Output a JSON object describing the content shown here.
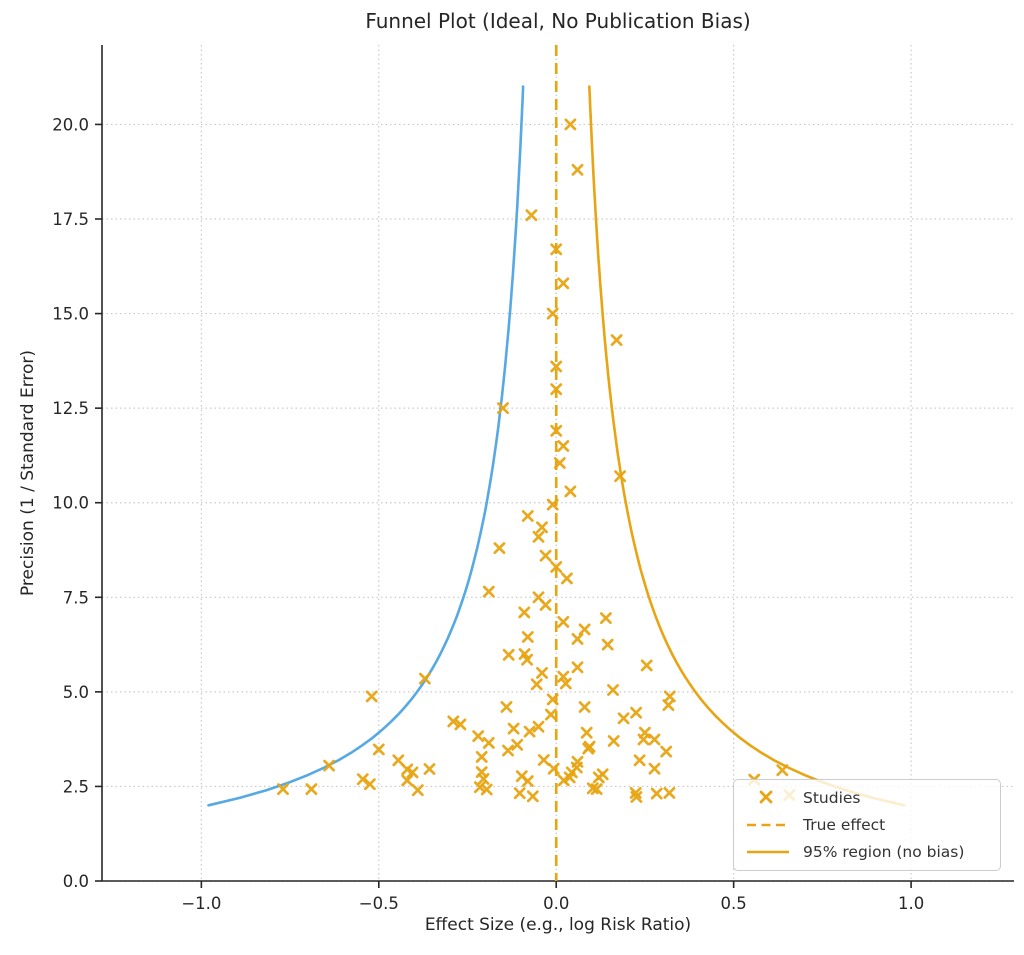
{
  "chart_data": {
    "type": "scatter",
    "title": "Funnel Plot (Ideal, No Publication Bias)",
    "xlabel": "Effect Size (e.g., log Risk Ratio)",
    "ylabel": "Precision (1 / Standard Error)",
    "xlim": [
      -1.28,
      1.29
    ],
    "ylim": [
      0,
      22.1
    ],
    "xticks": [
      -1.0,
      -0.5,
      0.0,
      0.5,
      1.0
    ],
    "yticks": [
      0.0,
      2.5,
      5.0,
      7.5,
      10.0,
      12.5,
      15.0,
      17.5,
      20.0
    ],
    "grid": "dotted",
    "legend_position": "lower right",
    "true_effect_x": 0.0,
    "funnel": {
      "z": 1.96,
      "precision_min": 2.0,
      "precision_max": 21.0
    },
    "colors": {
      "studies": "#E8A412",
      "true_effect": "#E8A412",
      "funnel_right": "#E8A412",
      "funnel_left": "#56A9E3",
      "grid": "#c9c9c9",
      "axis": "#262626",
      "text": "#262626",
      "legend_text": "#333333"
    },
    "legend": {
      "items": [
        {
          "label": "Studies",
          "type": "marker"
        },
        {
          "label": "True effect",
          "type": "dashed"
        },
        {
          "label": "95% region (no bias)",
          "type": "solid"
        }
      ]
    },
    "series": [
      {
        "name": "Studies",
        "points": [
          [
            0.04,
            20.0
          ],
          [
            0.06,
            18.8
          ],
          [
            -0.07,
            17.6
          ],
          [
            0.0,
            16.7
          ],
          [
            0.02,
            15.8
          ],
          [
            -0.01,
            15.0
          ],
          [
            0.17,
            14.3
          ],
          [
            0.0,
            13.6
          ],
          [
            0.0,
            13.0
          ],
          [
            -0.15,
            12.5
          ],
          [
            0.0,
            11.9
          ],
          [
            0.02,
            11.5
          ],
          [
            0.01,
            11.05
          ],
          [
            0.18,
            10.7
          ],
          [
            0.04,
            10.3
          ],
          [
            -0.01,
            9.95
          ],
          [
            -0.08,
            9.65
          ],
          [
            -0.04,
            9.35
          ],
          [
            -0.05,
            9.1
          ],
          [
            -0.16,
            8.8
          ],
          [
            -0.03,
            8.6
          ],
          [
            0.0,
            8.3
          ],
          [
            0.03,
            8.0
          ],
          [
            -0.19,
            7.65
          ],
          [
            -0.05,
            7.5
          ],
          [
            -0.03,
            7.3
          ],
          [
            -0.09,
            7.1
          ],
          [
            0.14,
            6.95
          ],
          [
            0.02,
            6.85
          ],
          [
            0.08,
            6.65
          ],
          [
            -0.08,
            6.45
          ],
          [
            0.06,
            6.4
          ],
          [
            0.145,
            6.25
          ],
          [
            -0.089,
            6.0
          ],
          [
            -0.134,
            5.98
          ],
          [
            -0.082,
            5.85
          ],
          [
            0.255,
            5.7
          ],
          [
            0.06,
            5.65
          ],
          [
            -0.04,
            5.5
          ],
          [
            0.02,
            5.4
          ],
          [
            -0.37,
            5.35
          ],
          [
            -0.055,
            5.2
          ],
          [
            0.027,
            5.22
          ],
          [
            0.16,
            5.05
          ],
          [
            0.32,
            4.88
          ],
          [
            -0.52,
            4.88
          ],
          [
            0.316,
            4.65
          ],
          [
            -0.01,
            4.8
          ],
          [
            0.08,
            4.6
          ],
          [
            -0.14,
            4.6
          ],
          [
            0.225,
            4.45
          ],
          [
            -0.015,
            4.4
          ],
          [
            0.19,
            4.3
          ],
          [
            -0.29,
            4.22
          ],
          [
            -0.27,
            4.14
          ],
          [
            -0.12,
            4.03
          ],
          [
            -0.05,
            4.08
          ],
          [
            -0.075,
            3.95
          ],
          [
            0.086,
            3.92
          ],
          [
            0.25,
            3.92
          ],
          [
            -0.22,
            3.83
          ],
          [
            0.246,
            3.74
          ],
          [
            0.277,
            3.74
          ],
          [
            0.162,
            3.7
          ],
          [
            -0.19,
            3.65
          ],
          [
            -0.11,
            3.6
          ],
          [
            0.094,
            3.55
          ],
          [
            0.09,
            3.5
          ],
          [
            -0.5,
            3.48
          ],
          [
            -0.136,
            3.45
          ],
          [
            0.31,
            3.42
          ],
          [
            -0.21,
            3.28
          ],
          [
            -0.035,
            3.2
          ],
          [
            -0.445,
            3.19
          ],
          [
            0.235,
            3.19
          ],
          [
            0.06,
            3.15
          ],
          [
            -0.64,
            3.05
          ],
          [
            0.058,
            3.0
          ],
          [
            -0.007,
            2.97
          ],
          [
            0.277,
            2.97
          ],
          [
            -0.42,
            2.95
          ],
          [
            -0.357,
            2.96
          ],
          [
            0.637,
            2.93
          ],
          [
            -0.405,
            2.87
          ],
          [
            0.044,
            2.87
          ],
          [
            -0.21,
            2.88
          ],
          [
            0.131,
            2.82
          ],
          [
            -0.097,
            2.77
          ],
          [
            0.12,
            2.74
          ],
          [
            0.038,
            2.74
          ],
          [
            -0.205,
            2.7
          ],
          [
            -0.545,
            2.69
          ],
          [
            0.558,
            2.68
          ],
          [
            -0.42,
            2.66
          ],
          [
            0.021,
            2.66
          ],
          [
            -0.08,
            2.64
          ],
          [
            -0.525,
            2.56
          ],
          [
            -0.215,
            2.48
          ],
          [
            0.103,
            2.45
          ],
          [
            -0.77,
            2.43
          ],
          [
            -0.69,
            2.43
          ],
          [
            0.114,
            2.43
          ],
          [
            -0.39,
            2.4
          ],
          [
            -0.196,
            2.42
          ],
          [
            0.283,
            2.31
          ],
          [
            -0.103,
            2.32
          ],
          [
            0.224,
            2.33
          ],
          [
            0.319,
            2.33
          ],
          [
            0.657,
            2.27
          ],
          [
            0.226,
            2.22
          ],
          [
            -0.066,
            2.24
          ]
        ]
      }
    ]
  }
}
